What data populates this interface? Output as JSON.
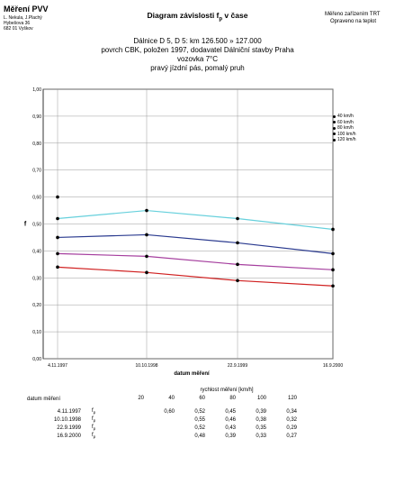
{
  "header": {
    "title": "Měření PVV",
    "lines": [
      "L. Nekula, J.Plachý",
      "Hybešova 36",
      "682 01 Vyškov"
    ],
    "device_lines": [
      "Měřeno zařízením TRT",
      "Opraveno na teplot"
    ]
  },
  "main_title": {
    "prefix": "Diagram závislosti f",
    "sub": "p",
    "suffix": " v čase"
  },
  "subtitle_lines": [
    "Dálnice D 5, D 5: km 126.500 » 127.000",
    "povrch CBK, položen 1997, dodavatel Dálniční stavby Praha",
    "vozovka 7°C",
    "pravý jízdní pás, pomalý pruh"
  ],
  "chart_data": {
    "type": "line",
    "x": [
      "4.11.1997",
      "10.10.1998",
      "22.9.1999",
      "16.9.2000"
    ],
    "xlabel": "datum měření",
    "ylabel": "f",
    "ylim": [
      0,
      1
    ],
    "yticks": [
      "0,00",
      "0,10",
      "0,20",
      "0,30",
      "0,40",
      "0,50",
      "0,60",
      "0,70",
      "0,80",
      "0,90",
      "1,00"
    ],
    "grid": true,
    "legend_position": "right",
    "series": [
      {
        "name": "40 km/h",
        "values": [
          0.6,
          null,
          null,
          null
        ],
        "color": "#b0b0b0"
      },
      {
        "name": "60 km/h",
        "values": [
          0.52,
          0.55,
          0.52,
          0.48
        ],
        "color": "#66d0dc"
      },
      {
        "name": "80 km/h",
        "values": [
          0.45,
          0.46,
          0.43,
          0.39
        ],
        "color": "#2a3a8f"
      },
      {
        "name": "100 km/h",
        "values": [
          0.39,
          0.38,
          0.35,
          0.33
        ],
        "color": "#a53e9e"
      },
      {
        "name": "120 km/h",
        "values": [
          0.34,
          0.32,
          0.29,
          0.27
        ],
        "color": "#d02020"
      }
    ]
  },
  "table": {
    "row_header": "datum měření",
    "group_header": "rychlost měření [km/h]",
    "speeds": [
      "20",
      "40",
      "60",
      "80",
      "100",
      "120"
    ],
    "rows": [
      {
        "date": "4.11.1997",
        "f": "f",
        "sub": "p",
        "values": [
          "",
          "0,60",
          "0,52",
          "0,45",
          "0,39",
          "0,34"
        ]
      },
      {
        "date": "10.10.1998",
        "f": "f",
        "sub": "p",
        "values": [
          "",
          "",
          "0,55",
          "0,46",
          "0,38",
          "0,32"
        ]
      },
      {
        "date": "22.9.1999",
        "f": "f",
        "sub": "p",
        "values": [
          "",
          "",
          "0,52",
          "0,43",
          "0,35",
          "0,29"
        ]
      },
      {
        "date": "16.9.2000",
        "f": "f",
        "sub": "p",
        "values": [
          "",
          "",
          "0,48",
          "0,39",
          "0,33",
          "0,27"
        ]
      }
    ]
  }
}
